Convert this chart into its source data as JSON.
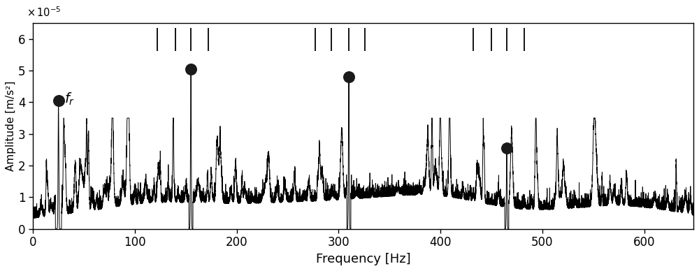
{
  "xlabel": "Frequency [Hz]",
  "ylabel": "Amplitude [m/s²]",
  "xlim": [
    0,
    648
  ],
  "ylim": [
    0,
    6.5e-05
  ],
  "yticks": [
    0,
    1e-05,
    2e-05,
    3e-05,
    4e-05,
    5e-05,
    6e-05
  ],
  "ytick_labels": [
    "0",
    "1",
    "2",
    "3",
    "4",
    "5",
    "6"
  ],
  "xticks": [
    0,
    100,
    200,
    300,
    400,
    500,
    600
  ],
  "fr_freq": 25.0,
  "fr_amp": 4.05e-05,
  "marked_peaks": [
    {
      "freq": 155.0,
      "amp": 5.05e-05
    },
    {
      "freq": 310.0,
      "amp": 4.8e-05
    },
    {
      "freq": 465.0,
      "amp": 2.55e-05
    }
  ],
  "dashed_line_groups": [
    [
      122,
      140,
      155,
      172
    ],
    [
      277,
      293,
      310,
      326
    ],
    [
      432,
      450,
      465,
      482
    ]
  ],
  "dashed_ystart": 5.62e-05,
  "dashed_yend": 6.35e-05,
  "dot_color": "#1a1a1a",
  "dot_size": 150,
  "noise_seed": 42,
  "noise_floor": 3.5e-06,
  "spike_density": 120,
  "max_spike_amp": 3.5e-05,
  "background_color": "#ffffff",
  "line_color": "#000000",
  "linewidth": 0.7
}
